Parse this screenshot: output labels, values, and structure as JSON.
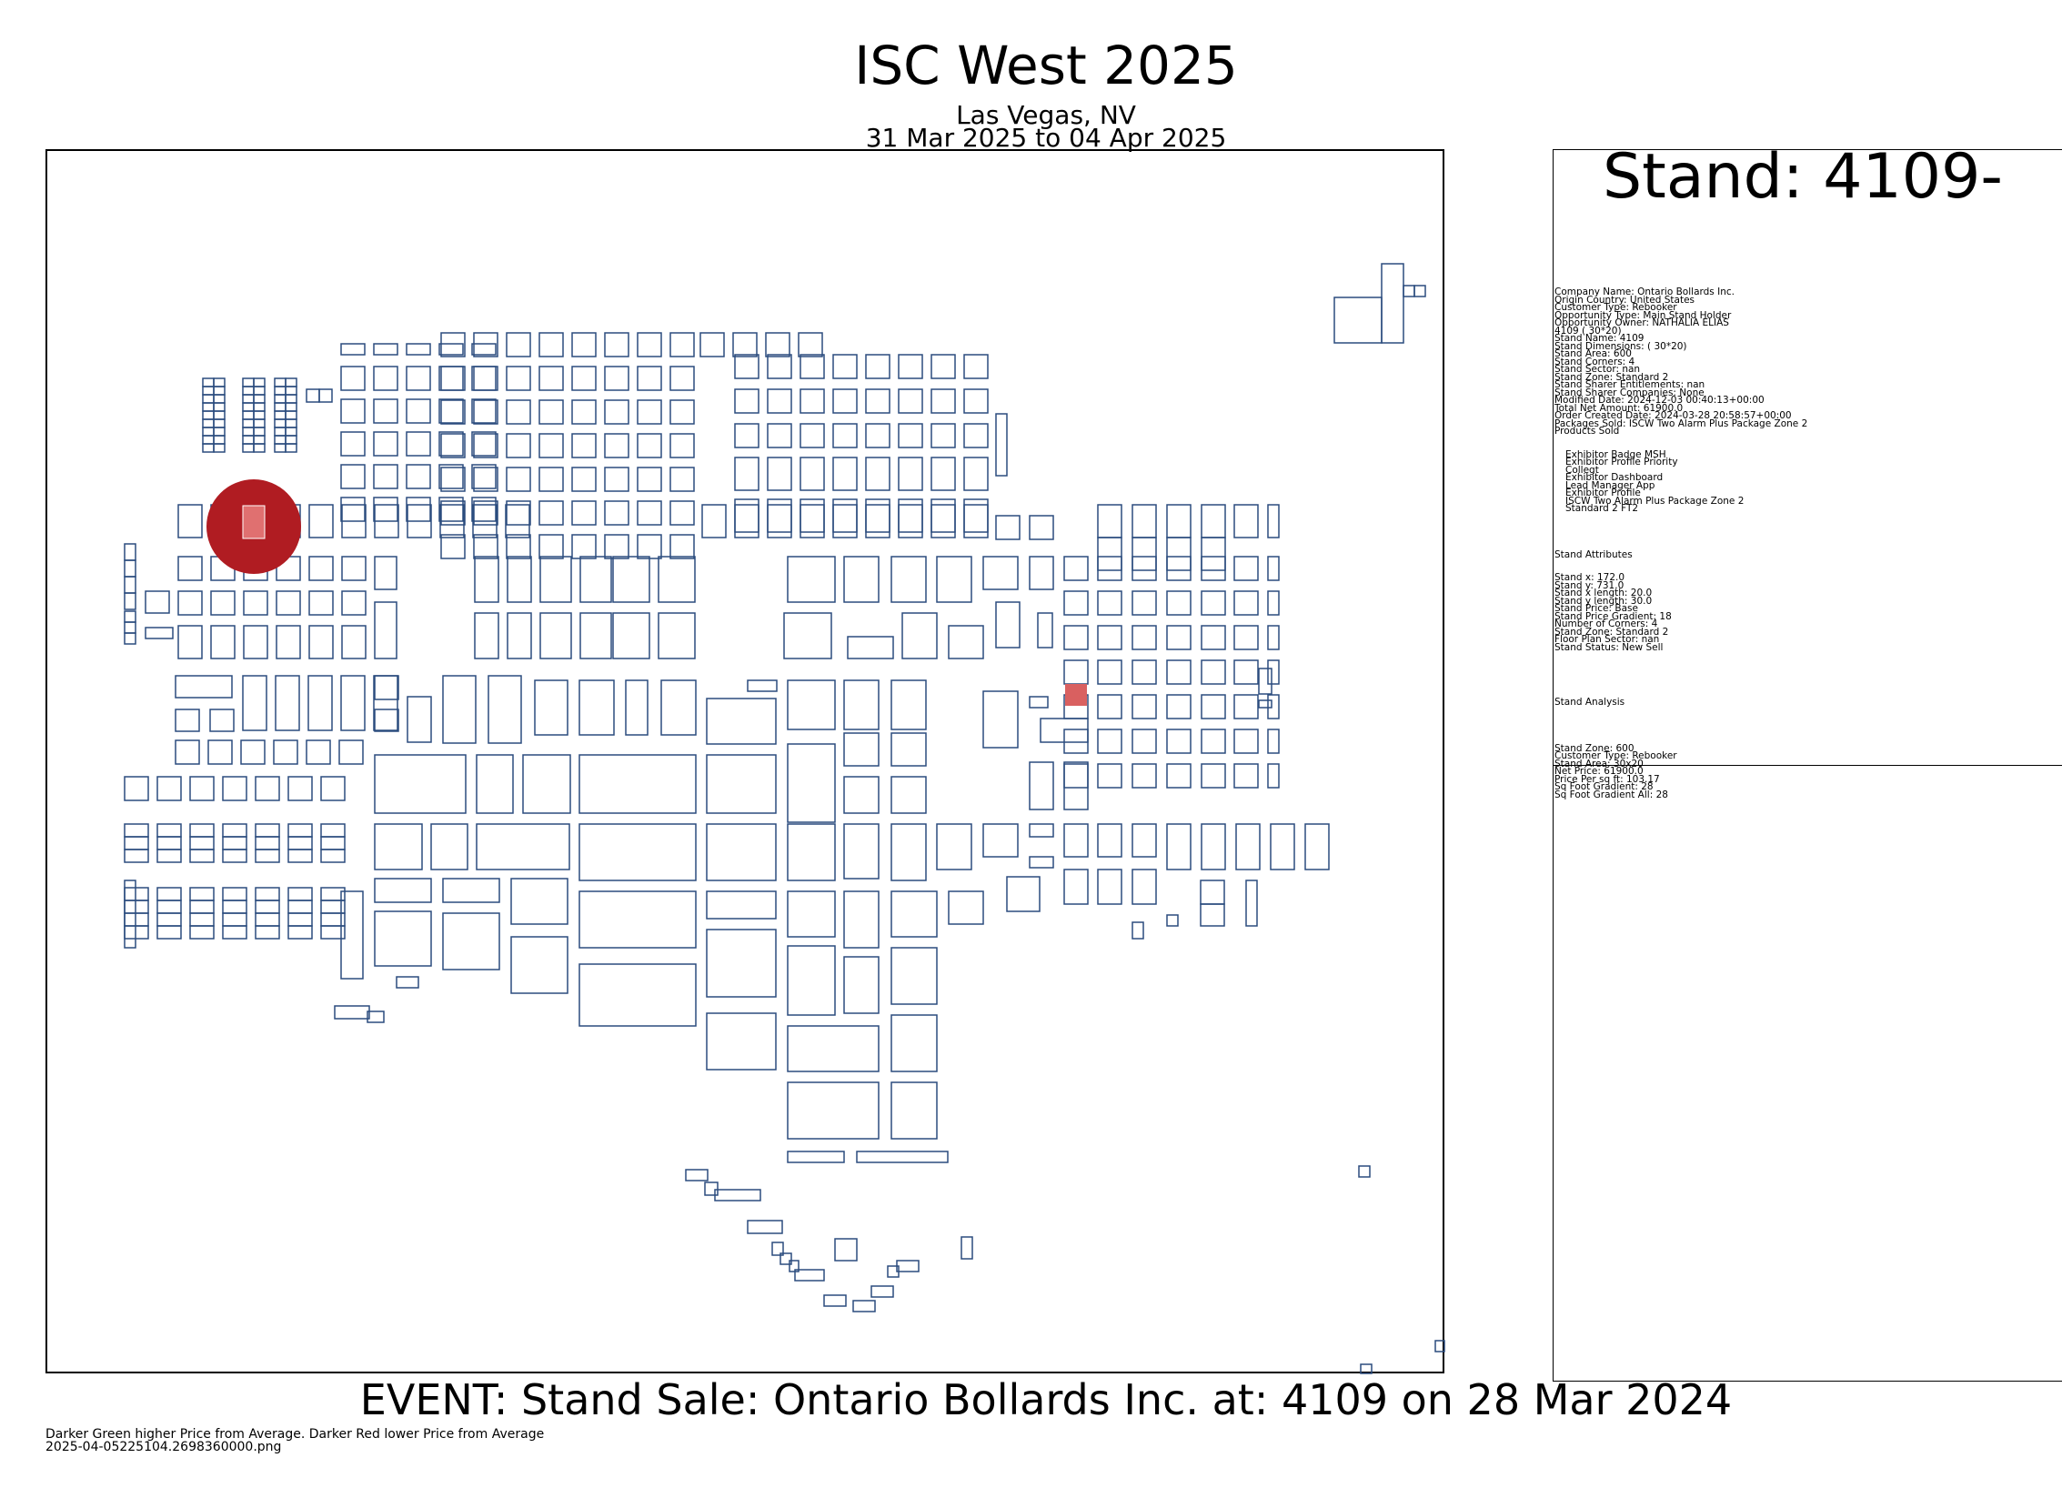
{
  "header": {
    "title": "ISC West 2025",
    "location": "Las Vegas, NV",
    "dates": "31 Mar 2025 to 04 Apr 2025"
  },
  "stand_panel": {
    "title": "Stand: 4109-",
    "details": [
      "Company Name: Ontario Bollards Inc.",
      "Origin Country: United States",
      "Customer Type: Rebooker",
      "Opportunity Type: Main Stand Holder",
      "Opportunity Owner: NATHALIA ELIAS",
      "4109 ( 30*20)",
      "Stand Name: 4109",
      "Stand Dimensions: ( 30*20)",
      "Stand Area: 600",
      "Stand Corners: 4",
      "Stand Sector: nan",
      "Stand Zone: Standard 2",
      "Stand Sharer Entitlements: nan",
      "Stand Sharer Companies: None",
      "Modified Date: 2024-12-03 00:40:13+00:00",
      "Total Net Amount: 61900.0",
      "Order Created Date: 2024-03-28 20:58:57+00:00",
      "Packages Sold: ISCW Two Alarm Plus Package Zone 2",
      "Products Sold"
    ],
    "products": [
      "Exhibitor Badge MSH",
      "Exhibitor Profile Priority",
      "Collegt",
      "Exhibitor Dashboard",
      "Lead Manager App",
      "Exhibitor Profile",
      "ISCW Two Alarm Plus Package Zone 2",
      "Standard 2 FT2"
    ],
    "attributes_title": "Stand Attributes",
    "attributes": [
      "Stand x: 172.0",
      "Stand y: 731.0",
      "Stand x length: 20.0",
      "Stand y length: 30.0",
      "Stand Price: Base",
      "Stand Price Gradient: 18",
      "Number of Corners: 4",
      "Stand Zone: Standard 2",
      "Floor Plan Sector: nan",
      "Stand Status: New Sell"
    ],
    "analysis_title": "Stand Analysis",
    "analysis": [
      "Stand Zone: 600",
      "Customer Type: Rebooker",
      "Stand Area: 30x20",
      "Net Price: 61900.0",
      "Price Per sq ft: 103.17",
      "Sq Foot Gradient: 28",
      "Sq Foot Gradient All: 28"
    ]
  },
  "event_text": "EVENT: Stand Sale: Ontario Bollards Inc. at: 4109 on 28 Mar 2024",
  "legend_note": "Darker Green higher Price from Average.  Darker Red lower Price from Average",
  "filename": "2025-04-05225104.2698360000.png",
  "colors": {
    "stand_outline": "#2b4c7e",
    "highlight_circle": "#b01c22",
    "highlight_stand": "#e07070"
  }
}
